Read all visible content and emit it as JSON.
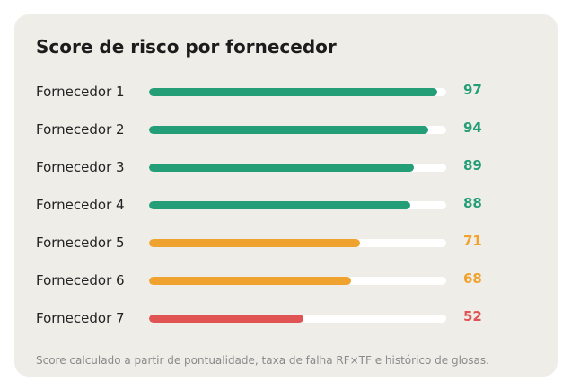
{
  "chart_data": {
    "type": "bar",
    "orientation": "horizontal",
    "title": "Score de risco por fornecedor",
    "categories": [
      "Fornecedor 1",
      "Fornecedor 2",
      "Fornecedor 3",
      "Fornecedor 4",
      "Fornecedor 5",
      "Fornecedor 6",
      "Fornecedor 7"
    ],
    "values": [
      97,
      94,
      89,
      88,
      71,
      68,
      52
    ],
    "value_labels": [
      "97",
      "94",
      "89",
      "88",
      "71",
      "68",
      "52"
    ],
    "xlim": [
      0,
      100
    ],
    "grid": false,
    "legend": "none",
    "colors": {
      "high": "#239e77",
      "medium": "#f0a22e",
      "low": "#e05454",
      "track": "#ffffff"
    },
    "bar_colors": [
      "high",
      "high",
      "high",
      "high",
      "medium",
      "medium",
      "low"
    ],
    "footnote": "Score calculado a partir de pontualidade, taxa de falha RF×TF e histórico de glosas."
  }
}
